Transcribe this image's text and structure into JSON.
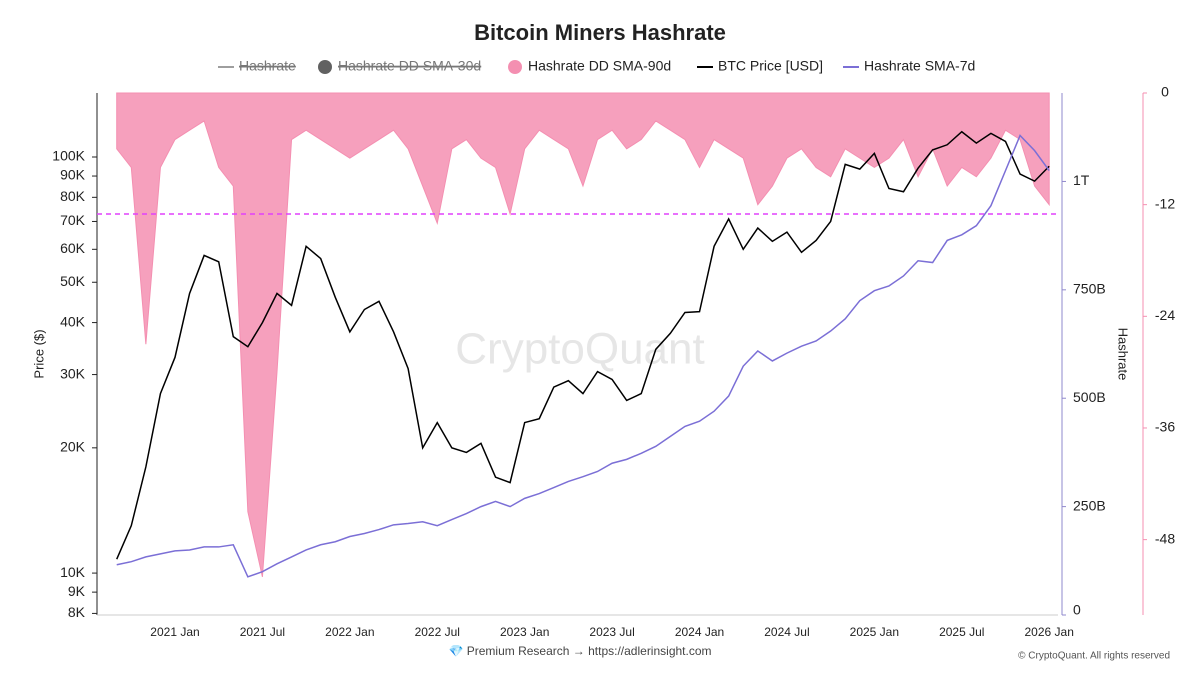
{
  "chart_data": {
    "type": "line",
    "title": "Bitcoin Miners Hashrate",
    "watermark": "CryptoQuant",
    "footer": "💎 Premium Research → https://adlerinsight.com",
    "copyright": "© CryptoQuant. All rights reserved",
    "ylabel": "Price ($)",
    "y2label": "Hashrate",
    "log_y": true,
    "x": [
      "2020 Sep",
      "2020 Oct",
      "2020 Nov",
      "2020 Dec",
      "2021 Jan",
      "2021 Feb",
      "2021 Mar",
      "2021 Apr",
      "2021 May",
      "2021 Jun",
      "2021 Jul",
      "2021 Aug",
      "2021 Sep",
      "2021 Oct",
      "2021 Nov",
      "2021 Dec",
      "2022 Jan",
      "2022 Feb",
      "2022 Mar",
      "2022 Apr",
      "2022 May",
      "2022 Jun",
      "2022 Jul",
      "2022 Aug",
      "2022 Sep",
      "2022 Oct",
      "2022 Nov",
      "2022 Dec",
      "2023 Jan",
      "2023 Feb",
      "2023 Mar",
      "2023 Apr",
      "2023 May",
      "2023 Jun",
      "2023 Jul",
      "2023 Aug",
      "2023 Sep",
      "2023 Oct",
      "2023 Nov",
      "2023 Dec",
      "2024 Jan",
      "2024 Feb",
      "2024 Mar",
      "2024 Apr",
      "2024 May",
      "2024 Jun",
      "2024 Jul",
      "2024 Aug",
      "2024 Sep",
      "2024 Oct",
      "2024 Nov",
      "2024 Dec",
      "2025 Jan",
      "2025 Feb",
      "2025 Mar",
      "2025 Apr",
      "2025 May",
      "2025 Jun",
      "2025 Jul",
      "2025 Aug",
      "2025 Sep",
      "2025 Oct",
      "2025 Nov",
      "2025 Dec",
      "2026 Jan"
    ],
    "xticks": [
      "2021 Jan",
      "2021 Jul",
      "2022 Jan",
      "2022 Jul",
      "2023 Jan",
      "2023 Jul",
      "2024 Jan",
      "2024 Jul",
      "2025 Jan",
      "2025 Jul",
      "2026 Jan"
    ],
    "ylim": [
      7930,
      142500
    ],
    "yticks": [
      {
        "value": 8000,
        "label": "8K"
      },
      {
        "value": 9000,
        "label": "9K"
      },
      {
        "value": 10000,
        "label": "10K"
      },
      {
        "value": 20000,
        "label": "20K"
      },
      {
        "value": 30000,
        "label": "30K"
      },
      {
        "value": 40000,
        "label": "40K"
      },
      {
        "value": 50000,
        "label": "50K"
      },
      {
        "value": 60000,
        "label": "60K"
      },
      {
        "value": 70000,
        "label": "70K"
      },
      {
        "value": 80000,
        "label": "80K"
      },
      {
        "value": 90000,
        "label": "90K"
      },
      {
        "value": 100000,
        "label": "100K"
      }
    ],
    "y2lim": [
      0,
      1204000000000
    ],
    "y2ticks": [
      0,
      {
        "value": 250000000000,
        "label": "250B"
      },
      {
        "value": 500000000000,
        "label": "500B"
      },
      {
        "value": 750000000000,
        "label": "750B"
      },
      {
        "value": 1000000000000,
        "label": "1T"
      }
    ],
    "y3lim": [
      -56.1,
      0
    ],
    "y3ticks": [
      0,
      -12,
      -24,
      -36,
      -48
    ],
    "threshold": -13,
    "threshold_color": "#e040fb",
    "legend_hidden": [
      {
        "name": "Hashrate",
        "color": "#9e9e9e",
        "marker": "line"
      },
      {
        "name": "Hashrate DD SMA-30d",
        "color": "#616161",
        "marker": "circle"
      }
    ],
    "series": [
      {
        "name": "Hashrate DD SMA-90d",
        "color": "#f48fb1",
        "axis": "y3",
        "marker": "circle",
        "values": [
          -6,
          -8,
          -27,
          -8,
          -5,
          -4,
          -3,
          -8,
          -10,
          -45,
          -52,
          -30,
          -5,
          -4,
          -5,
          -6,
          -7,
          -6,
          -5,
          -4,
          -6,
          -10,
          -14,
          -6,
          -5,
          -7,
          -8,
          -13,
          -6,
          -4,
          -5,
          -6,
          -10,
          -5,
          -4,
          -6,
          -5,
          -3,
          -4,
          -5,
          -8,
          -5,
          -6,
          -7,
          -12,
          -10,
          -7,
          -6,
          -8,
          -9,
          -6,
          -7,
          -8,
          -7,
          -5,
          -9,
          -6,
          -10,
          -8,
          -9,
          -7,
          -4,
          -5,
          -10,
          -12
        ]
      },
      {
        "name": "BTC Price [USD]",
        "color": "#000000",
        "axis": "y",
        "marker": "line",
        "values": [
          10800,
          13000,
          18000,
          27000,
          33000,
          47000,
          58000,
          56000,
          37000,
          35000,
          40000,
          47000,
          44000,
          61000,
          57000,
          46000,
          38000,
          43000,
          45000,
          38000,
          31000,
          20000,
          23000,
          20000,
          19500,
          20500,
          17000,
          16500,
          23000,
          23500,
          28000,
          29000,
          27000,
          30500,
          29200,
          26000,
          27000,
          34500,
          37700,
          42300,
          42500,
          61000,
          71000,
          60000,
          67500,
          62700,
          66000,
          59000,
          63000,
          70000,
          96000,
          93500,
          102000,
          84000,
          82500,
          94000,
          104000,
          107000,
          115000,
          108000,
          114000,
          109000,
          91000,
          87500,
          95000
        ]
      },
      {
        "name": "Hashrate SMA-7d",
        "color": "#7b6fd6",
        "axis": "y2",
        "marker": "line",
        "values": [
          116000000000,
          123000000000,
          134000000000,
          141000000000,
          148000000000,
          150000000000,
          157000000000,
          157000000000,
          162000000000,
          88000000000,
          100000000000,
          118000000000,
          134000000000,
          150000000000,
          162000000000,
          169000000000,
          181000000000,
          188000000000,
          197000000000,
          208000000000,
          211000000000,
          215000000000,
          206000000000,
          220000000000,
          234000000000,
          250000000000,
          262000000000,
          250000000000,
          269000000000,
          280000000000,
          294000000000,
          308000000000,
          319000000000,
          331000000000,
          350000000000,
          359000000000,
          373000000000,
          389000000000,
          412000000000,
          435000000000,
          447000000000,
          470000000000,
          505000000000,
          574000000000,
          609000000000,
          586000000000,
          604000000000,
          620000000000,
          632000000000,
          655000000000,
          683000000000,
          725000000000,
          748000000000,
          759000000000,
          782000000000,
          817000000000,
          813000000000,
          864000000000,
          877000000000,
          898000000000,
          944000000000,
          1025000000000,
          1106000000000,
          1071000000000,
          1025000000000
        ]
      }
    ]
  }
}
